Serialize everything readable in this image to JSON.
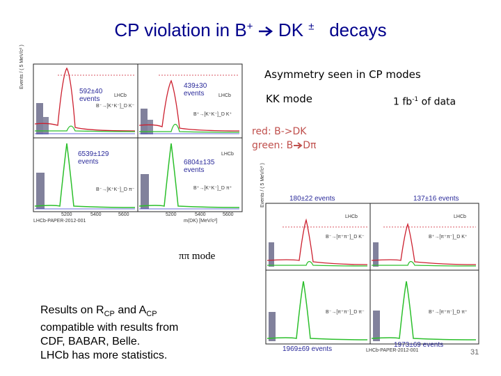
{
  "slide": {
    "title_prefix": "CP violation in B",
    "title_plus": "+",
    "title_mid": " DK",
    "title_pm": "±",
    "title_suffix": "decays",
    "asymmetry_text": "Asymmetry seen in CP modes",
    "kk_mode": "KK mode",
    "data_prefix": "1 fb",
    "data_sup": "-1",
    "data_suffix": " of data",
    "legend_red": "red: B->DK",
    "legend_green": "green: B",
    "legend_green_tail": "Dπ",
    "pipi_mode": "ππ mode",
    "results_line1_a": "Results on R",
    "results_line1_sub1": "CP",
    "results_line1_b": " and A",
    "results_line1_sub2": "CP",
    "results_line2": "compatible with results from",
    "results_line3": "CDF, BABAR, Belle.",
    "results_line4": "LHCb has more statistics.",
    "page_number": "31"
  },
  "kk_plot": {
    "events_tl": "592±40",
    "events_tl_unit": "events",
    "events_tr": "439±30",
    "events_tr_unit": "events",
    "events_bl": "6539±129",
    "events_bl_unit": "events",
    "events_br": "6804±135",
    "events_br_unit": "events",
    "lhcb": "LHCb",
    "ylabel": "Events / ( 5 MeV/c² )",
    "xlabel": "m(DK) [MeV/c²]",
    "ticks": [
      "5200",
      "5400",
      "5600",
      "5200",
      "5400",
      "5600"
    ],
    "label_tl": "B⁻→[K⁺K⁻]_D K⁻",
    "label_tr": "B⁺→[K⁺K⁻]_D K⁺",
    "label_bl": "B⁻→[K⁺K⁻]_D π⁻",
    "label_br": "B⁺→[K⁺K⁻]_D π⁺",
    "footer": "LHCb-PAPER-2012-001"
  },
  "pipi_plot": {
    "events_tl": "180±22 events",
    "events_tr": "137±16 events",
    "events_bl": "1969±69 events",
    "events_br": "1973±69 events",
    "lhcb": "LHCb",
    "ylabel": "Events / ( 5 MeV/c² )",
    "label_tl": "B⁻→[π⁺π⁻]_D K⁻",
    "label_tr": "B⁺→[π⁺π⁻]_D K⁺",
    "label_bl": "B⁻→[π⁺π⁻]_D π⁻",
    "label_br": "B⁺→[π⁺π⁻]_D π⁺",
    "footer": "LHCb-PAPER-2012-001"
  },
  "colors": {
    "title": "#00008b",
    "legend": "#c0504d",
    "signal_red": "#cc1f2e",
    "signal_green": "#2bbf2b",
    "data_points": "#1a1a4a"
  }
}
